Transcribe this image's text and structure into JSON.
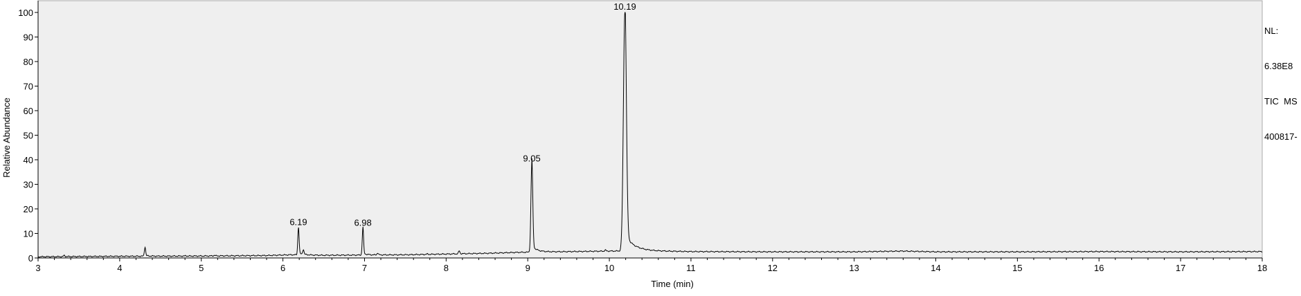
{
  "chart_data": {
    "type": "line",
    "xlabel": "Time (min)",
    "ylabel": "Relative Abundance",
    "xlim": [
      3,
      18
    ],
    "ylim": [
      0,
      100
    ],
    "x_ticks": [
      3,
      4,
      5,
      6,
      7,
      8,
      9,
      10,
      11,
      12,
      13,
      14,
      15,
      16,
      17,
      18
    ],
    "y_ticks": [
      0,
      10,
      20,
      30,
      40,
      50,
      60,
      70,
      80,
      90,
      100
    ],
    "grid": false,
    "background": "#efefef",
    "line_color": "#000000",
    "baseline": [
      [
        3.0,
        0.5
      ],
      [
        4.0,
        0.7
      ],
      [
        5.0,
        0.8
      ],
      [
        5.8,
        1.0
      ],
      [
        6.1,
        1.3
      ],
      [
        6.5,
        1.1
      ],
      [
        7.0,
        1.2
      ],
      [
        7.5,
        1.3
      ],
      [
        8.0,
        1.6
      ],
      [
        8.5,
        1.9
      ],
      [
        8.9,
        2.3
      ],
      [
        9.3,
        2.5
      ],
      [
        10.0,
        2.8
      ],
      [
        10.4,
        2.9
      ],
      [
        11.0,
        2.6
      ],
      [
        12.0,
        2.5
      ],
      [
        13.0,
        2.5
      ],
      [
        13.6,
        2.8
      ],
      [
        14.0,
        2.5
      ],
      [
        15.0,
        2.5
      ],
      [
        16.0,
        2.6
      ],
      [
        17.0,
        2.5
      ],
      [
        18.0,
        2.6
      ]
    ],
    "peaks": [
      {
        "rt": 3.32,
        "height": 1.0,
        "label": ""
      },
      {
        "rt": 4.31,
        "height": 4.3,
        "label": ""
      },
      {
        "rt": 4.81,
        "height": 0.9,
        "label": ""
      },
      {
        "rt": 5.16,
        "height": 1.1,
        "label": ""
      },
      {
        "rt": 6.19,
        "height": 12.2,
        "label": "6.19"
      },
      {
        "rt": 6.25,
        "height": 3.2,
        "label": ""
      },
      {
        "rt": 6.98,
        "height": 12.0,
        "label": "6.98"
      },
      {
        "rt": 7.16,
        "height": 2.0,
        "label": ""
      },
      {
        "rt": 7.77,
        "height": 1.6,
        "label": ""
      },
      {
        "rt": 8.16,
        "height": 2.8,
        "label": ""
      },
      {
        "rt": 9.05,
        "height": 38.2,
        "label": "9.05"
      },
      {
        "rt": 9.95,
        "height": 3.2,
        "label": ""
      },
      {
        "rt": 10.19,
        "height": 100.0,
        "label": "10.19"
      }
    ],
    "info_lines": [
      "NL:",
      "6.38E8",
      "TIC  MS",
      "400817-"
    ]
  }
}
